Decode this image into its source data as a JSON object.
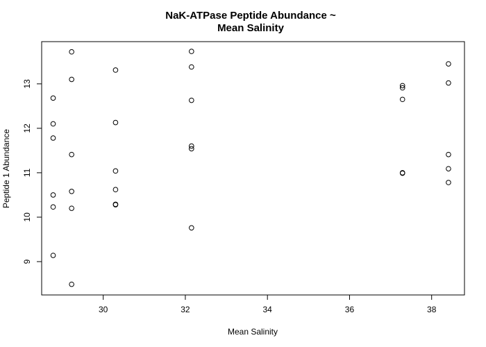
{
  "chart_data": {
    "type": "scatter",
    "title_lines": [
      "NaK-ATPase Peptide Abundance ~",
      "Mean Salinity"
    ],
    "xlabel": "Mean Salinity",
    "ylabel": "Peptide 1 Abundance",
    "xlim": [
      28.5,
      38.8
    ],
    "ylim": [
      8.25,
      13.95
    ],
    "xticks": [
      30,
      32,
      34,
      36,
      38
    ],
    "yticks": [
      9,
      10,
      11,
      12,
      13
    ],
    "grid": false,
    "marker": "open-circle",
    "points": [
      {
        "x": 28.78,
        "y": 12.68
      },
      {
        "x": 28.78,
        "y": 12.1
      },
      {
        "x": 28.78,
        "y": 11.78
      },
      {
        "x": 28.78,
        "y": 10.5
      },
      {
        "x": 28.78,
        "y": 10.23
      },
      {
        "x": 28.78,
        "y": 9.14
      },
      {
        "x": 29.23,
        "y": 13.72
      },
      {
        "x": 29.23,
        "y": 13.1
      },
      {
        "x": 29.23,
        "y": 11.41
      },
      {
        "x": 29.23,
        "y": 10.58
      },
      {
        "x": 29.23,
        "y": 10.2
      },
      {
        "x": 29.23,
        "y": 8.49
      },
      {
        "x": 30.3,
        "y": 13.31
      },
      {
        "x": 30.3,
        "y": 12.13
      },
      {
        "x": 30.3,
        "y": 11.04
      },
      {
        "x": 30.3,
        "y": 10.62
      },
      {
        "x": 30.3,
        "y": 10.29
      },
      {
        "x": 30.3,
        "y": 10.28
      },
      {
        "x": 32.15,
        "y": 13.73
      },
      {
        "x": 32.15,
        "y": 13.38
      },
      {
        "x": 32.15,
        "y": 12.63
      },
      {
        "x": 32.15,
        "y": 11.6
      },
      {
        "x": 32.15,
        "y": 11.54
      },
      {
        "x": 32.15,
        "y": 9.76
      },
      {
        "x": 37.29,
        "y": 12.96
      },
      {
        "x": 37.29,
        "y": 12.91
      },
      {
        "x": 37.29,
        "y": 12.65
      },
      {
        "x": 37.29,
        "y": 11.0
      },
      {
        "x": 37.29,
        "y": 10.99
      },
      {
        "x": 38.41,
        "y": 13.45
      },
      {
        "x": 38.41,
        "y": 13.02
      },
      {
        "x": 38.41,
        "y": 11.41
      },
      {
        "x": 38.41,
        "y": 11.09
      },
      {
        "x": 38.41,
        "y": 10.78
      }
    ]
  }
}
